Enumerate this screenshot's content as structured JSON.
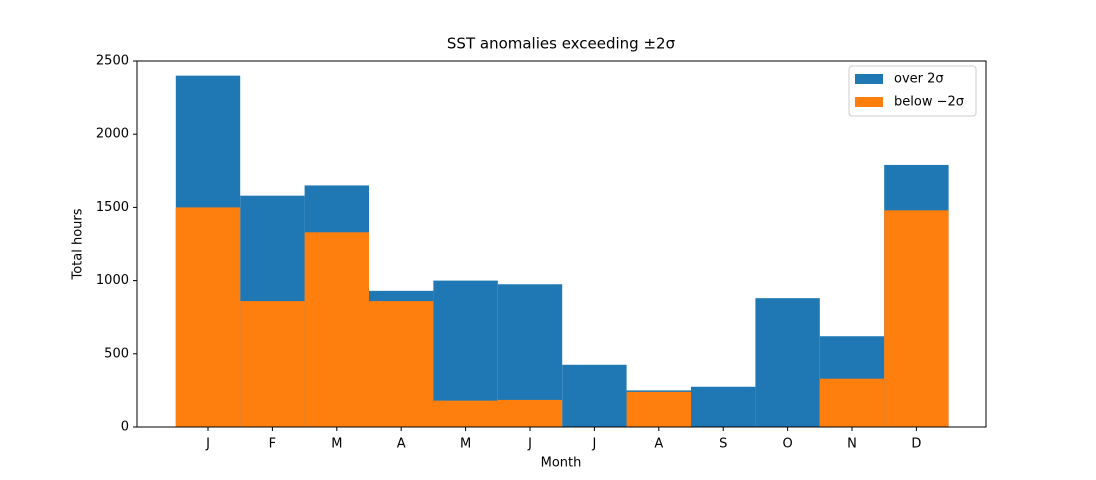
{
  "chart_data": {
    "type": "bar",
    "title": "SST anomalies exceeding ±2σ",
    "x_label": "Month",
    "y_label": "Total hours",
    "categories": [
      "J",
      "F",
      "M",
      "A",
      "M",
      "J",
      "J",
      "A",
      "S",
      "O",
      "N",
      "D"
    ],
    "series": [
      {
        "name": "over 2σ",
        "color": "#1f77b4",
        "values": [
          2400,
          1580,
          1650,
          930,
          1000,
          975,
          425,
          250,
          275,
          880,
          620,
          1790
        ]
      },
      {
        "name": "below −2σ",
        "color": "#ff7f0e",
        "values": [
          1500,
          860,
          1330,
          860,
          180,
          185,
          0,
          240,
          0,
          0,
          330,
          1480
        ]
      }
    ],
    "ylim": [
      0,
      2500
    ],
    "yticks": [
      0,
      500,
      1000,
      1500,
      2000,
      2500
    ],
    "legend": "upper right",
    "grid": false
  }
}
